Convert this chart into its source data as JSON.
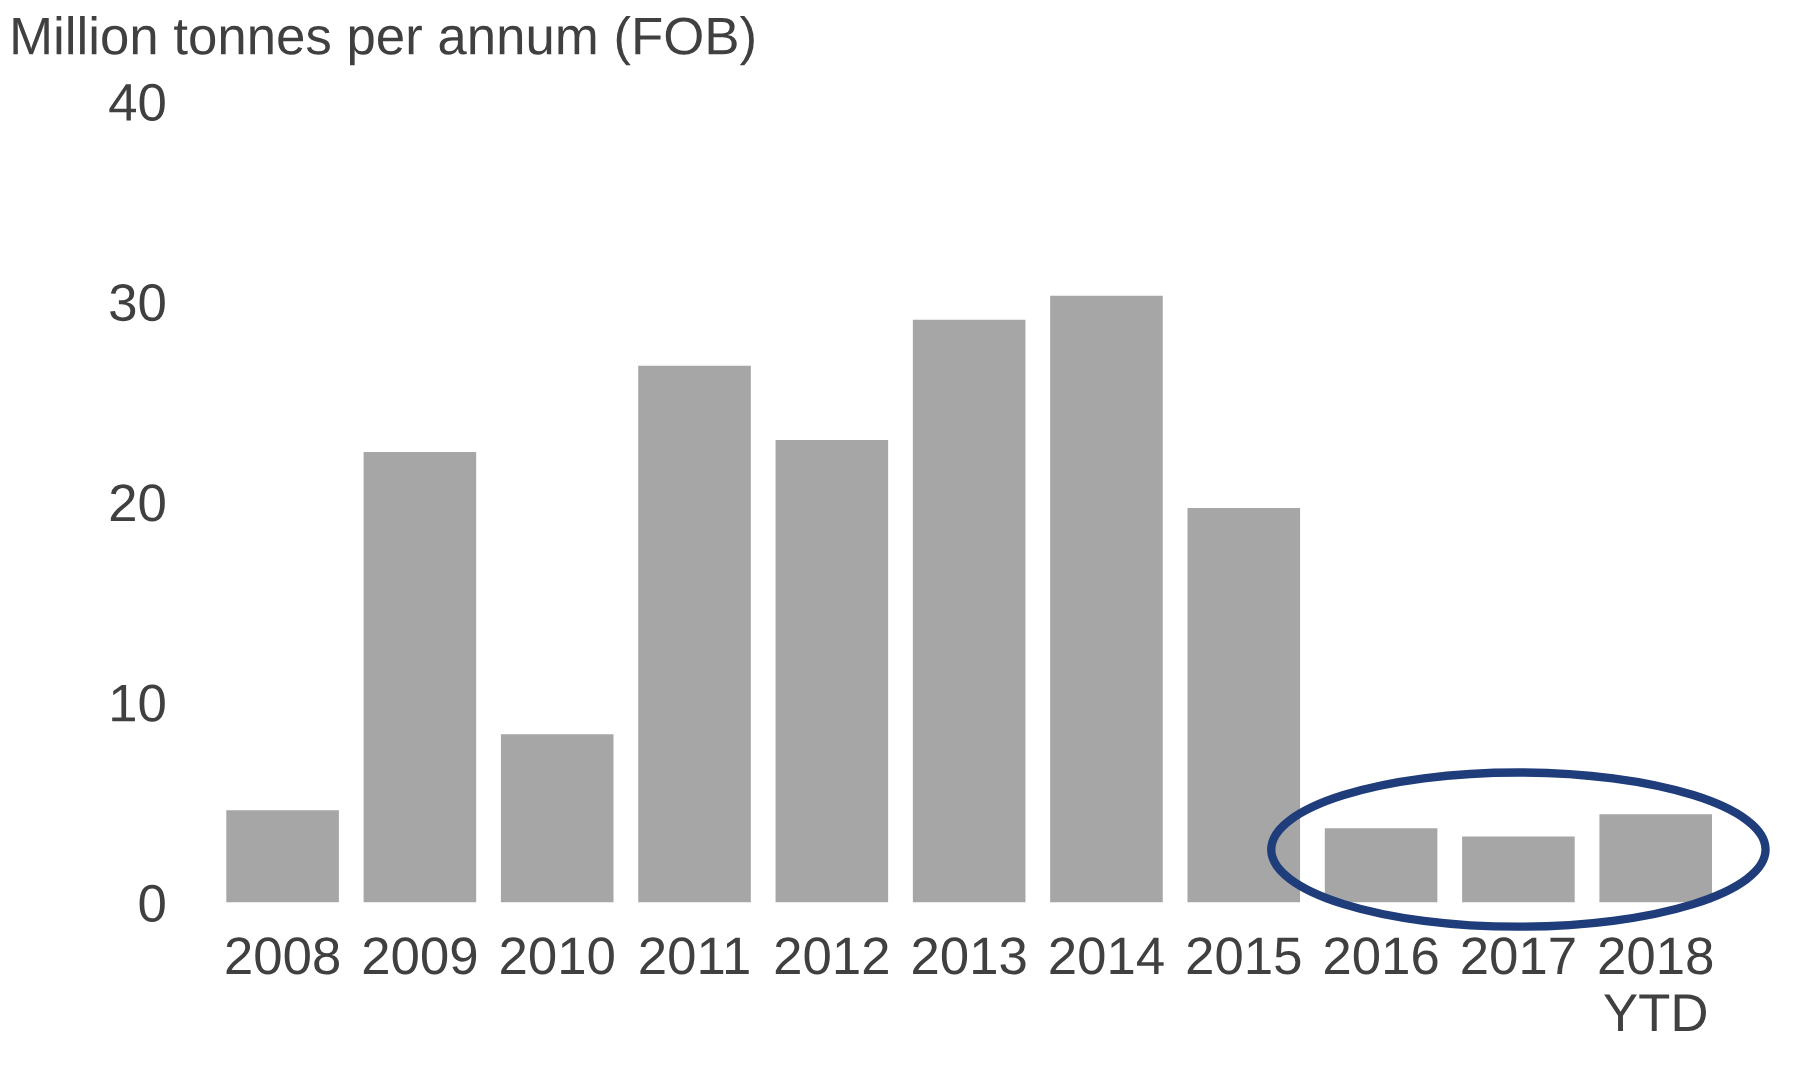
{
  "chart_data": {
    "type": "bar",
    "ylabel": "Million tonnes per annum (FOB)",
    "categories": [
      "2008",
      "2009",
      "2010",
      "2011",
      "2012",
      "2013",
      "2014",
      "2015",
      "2016",
      "2017",
      "2018\nYTD"
    ],
    "values": [
      4.6,
      22.5,
      8.4,
      26.8,
      23.1,
      29.1,
      30.3,
      19.7,
      3.7,
      3.3,
      4.4
    ],
    "color": "#a6a6a6",
    "ylim": [
      0,
      40
    ],
    "yticks": [
      0,
      10,
      20,
      30,
      40
    ],
    "grid": false
  }
}
